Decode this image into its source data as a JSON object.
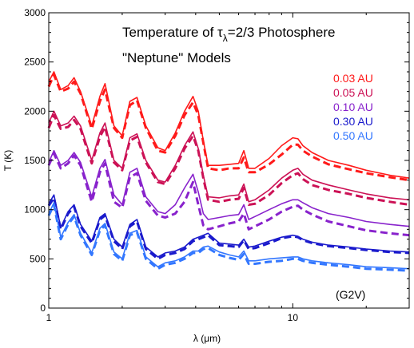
{
  "chart_data": {
    "type": "line",
    "title_line1_prefix": "Temperature of τ",
    "title_line1_subscript": "λ",
    "title_line1_suffix": "=2/3 Photosphere",
    "title_line2": "\"Neptune\" Models",
    "xlabel": "λ (μm)",
    "ylabel": "T (K)",
    "xscale": "log",
    "xlim": [
      1,
      30
    ],
    "ylim": [
      0,
      3000
    ],
    "x_tick_labels": [
      {
        "value": 1,
        "label": "1"
      },
      {
        "value": 10,
        "label": "10"
      }
    ],
    "y_ticks": [
      0,
      500,
      1000,
      1500,
      2000,
      2500,
      3000
    ],
    "legend_placement": "top-right",
    "annotation": "(G2V)",
    "x": [
      1.0,
      1.05,
      1.12,
      1.2,
      1.27,
      1.35,
      1.5,
      1.62,
      1.7,
      1.85,
      2.0,
      2.15,
      2.3,
      2.5,
      2.8,
      3.0,
      3.3,
      3.6,
      3.9,
      4.1,
      4.3,
      4.5,
      5.0,
      5.5,
      6.0,
      6.3,
      6.6,
      7.0,
      8.0,
      9.0,
      10.0,
      10.5,
      11.0,
      12.0,
      14.0,
      17.0,
      20.0,
      25.0,
      30.0
    ],
    "series": [
      {
        "name": "0.03 AU",
        "color": "#ff1a1a",
        "solid": [
          2300,
          2400,
          2220,
          2260,
          2340,
          2200,
          1850,
          2150,
          2280,
          1850,
          1750,
          2100,
          2140,
          1850,
          1630,
          1600,
          1780,
          2000,
          2150,
          2000,
          1700,
          1450,
          1450,
          1460,
          1470,
          1600,
          1420,
          1420,
          1520,
          1650,
          1730,
          1720,
          1650,
          1580,
          1500,
          1450,
          1400,
          1350,
          1320
        ],
        "dashed": [
          2250,
          2370,
          2200,
          2230,
          2300,
          2180,
          1820,
          2100,
          2220,
          1830,
          1730,
          2060,
          2110,
          1830,
          1600,
          1580,
          1750,
          1960,
          2090,
          1960,
          1680,
          1420,
          1400,
          1420,
          1420,
          1530,
          1380,
          1380,
          1460,
          1560,
          1660,
          1660,
          1600,
          1540,
          1460,
          1410,
          1370,
          1330,
          1300
        ]
      },
      {
        "name": "0.05 AU",
        "color": "#cc1155",
        "solid": [
          1880,
          2000,
          1850,
          1880,
          1950,
          1850,
          1500,
          1780,
          1880,
          1500,
          1420,
          1730,
          1770,
          1500,
          1300,
          1280,
          1450,
          1650,
          1790,
          1620,
          1350,
          1130,
          1120,
          1140,
          1150,
          1260,
          1080,
          1100,
          1200,
          1320,
          1400,
          1420,
          1360,
          1300,
          1250,
          1200,
          1160,
          1120,
          1100
        ],
        "dashed": [
          1830,
          1960,
          1820,
          1840,
          1910,
          1820,
          1470,
          1740,
          1840,
          1480,
          1400,
          1700,
          1740,
          1480,
          1280,
          1260,
          1420,
          1620,
          1750,
          1600,
          1320,
          1100,
          1080,
          1100,
          1110,
          1220,
          1050,
          1060,
          1150,
          1270,
          1350,
          1370,
          1310,
          1250,
          1200,
          1160,
          1120,
          1080,
          1050
        ]
      },
      {
        "name": "0.10 AU",
        "color": "#8822cc",
        "solid": [
          1480,
          1600,
          1450,
          1500,
          1580,
          1480,
          1130,
          1420,
          1510,
          1150,
          1050,
          1380,
          1420,
          1130,
          980,
          960,
          1050,
          1220,
          1360,
          1180,
          960,
          900,
          920,
          940,
          950,
          1050,
          900,
          930,
          1000,
          1060,
          1100,
          1100,
          1070,
          1020,
          960,
          920,
          880,
          850,
          830
        ],
        "dashed": [
          1450,
          1570,
          1420,
          1470,
          1550,
          1450,
          1080,
          1380,
          1470,
          1080,
          1020,
          1330,
          1370,
          1090,
          940,
          920,
          960,
          1080,
          1280,
          1050,
          840,
          800,
          830,
          860,
          880,
          960,
          800,
          830,
          900,
          980,
          1030,
          1040,
          1000,
          950,
          880,
          830,
          790,
          760,
          740
        ]
      },
      {
        "name": "0.30 AU",
        "color": "#1a1acc",
        "solid": [
          1060,
          1150,
          820,
          980,
          1050,
          850,
          680,
          920,
          960,
          700,
          620,
          850,
          900,
          620,
          520,
          560,
          580,
          620,
          700,
          720,
          740,
          760,
          660,
          650,
          640,
          700,
          620,
          630,
          680,
          720,
          740,
          730,
          700,
          670,
          640,
          620,
          600,
          580,
          570
        ],
        "dashed": [
          1040,
          1120,
          800,
          960,
          1030,
          830,
          660,
          900,
          940,
          680,
          600,
          830,
          880,
          600,
          500,
          540,
          560,
          600,
          680,
          700,
          720,
          740,
          640,
          630,
          620,
          690,
          600,
          610,
          660,
          710,
          730,
          720,
          690,
          660,
          630,
          610,
          590,
          570,
          560
        ]
      },
      {
        "name": "0.50 AU",
        "color": "#3377ff",
        "solid": [
          960,
          1070,
          720,
          870,
          950,
          760,
          560,
          810,
          860,
          570,
          500,
          760,
          790,
          520,
          420,
          460,
          480,
          520,
          580,
          580,
          620,
          630,
          570,
          540,
          520,
          580,
          480,
          480,
          500,
          510,
          520,
          520,
          500,
          480,
          460,
          440,
          420,
          410,
          400
        ],
        "dashed": [
          940,
          1050,
          700,
          850,
          930,
          740,
          540,
          790,
          840,
          550,
          480,
          740,
          770,
          500,
          400,
          440,
          460,
          500,
          560,
          560,
          600,
          610,
          540,
          510,
          490,
          550,
          450,
          450,
          470,
          480,
          500,
          500,
          480,
          460,
          440,
          420,
          400,
          390,
          380
        ]
      }
    ]
  }
}
